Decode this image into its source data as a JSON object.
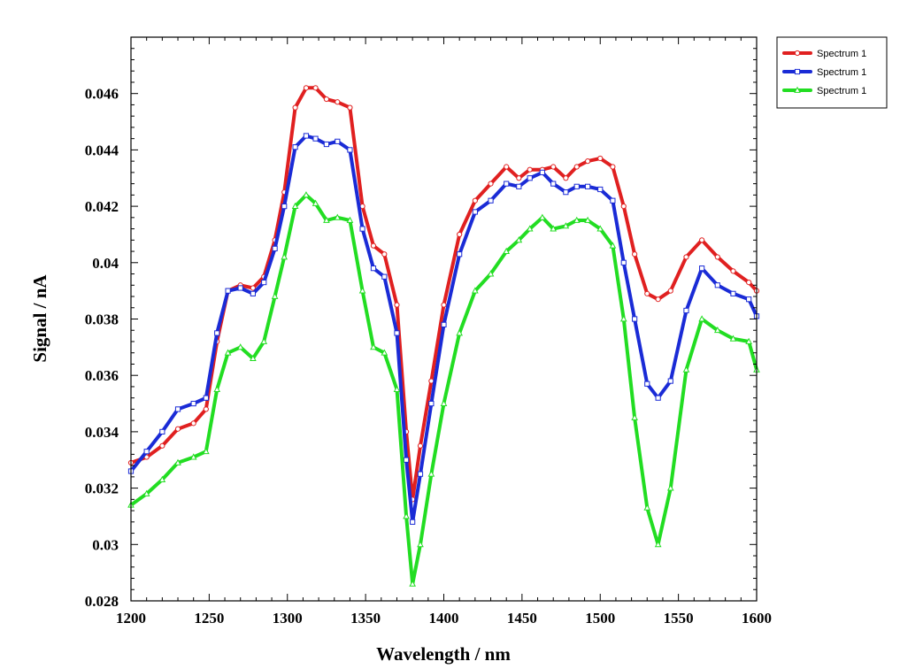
{
  "chart_data": {
    "type": "line",
    "title": "",
    "xlabel": "Wavelength / nm",
    "ylabel": "Signal / nA",
    "xlim": [
      1200,
      1600
    ],
    "ylim": [
      0.028,
      0.048
    ],
    "xticks": [
      "1200",
      "1250",
      "1300",
      "1350",
      "1400",
      "1450",
      "1500",
      "1550",
      "1600"
    ],
    "yticks": [
      "0.028",
      "0.03",
      "0.032",
      "0.034",
      "0.036",
      "0.038",
      "0.04",
      "0.042",
      "0.044",
      "0.046"
    ],
    "grid": false,
    "legend_position": "top-right outside",
    "series": [
      {
        "name": "Spectrum 1",
        "color": "#e02020",
        "marker": "circle",
        "points": [
          [
            1200,
            0.0329
          ],
          [
            1210,
            0.0331
          ],
          [
            1220,
            0.0335
          ],
          [
            1230,
            0.0341
          ],
          [
            1240,
            0.0343
          ],
          [
            1248,
            0.0348
          ],
          [
            1255,
            0.0372
          ],
          [
            1262,
            0.039
          ],
          [
            1270,
            0.0392
          ],
          [
            1278,
            0.0391
          ],
          [
            1285,
            0.0395
          ],
          [
            1292,
            0.0408
          ],
          [
            1298,
            0.0425
          ],
          [
            1305,
            0.0455
          ],
          [
            1312,
            0.0462
          ],
          [
            1318,
            0.0462
          ],
          [
            1325,
            0.0458
          ],
          [
            1332,
            0.0457
          ],
          [
            1340,
            0.0455
          ],
          [
            1348,
            0.042
          ],
          [
            1355,
            0.0406
          ],
          [
            1362,
            0.0403
          ],
          [
            1370,
            0.0385
          ],
          [
            1376,
            0.034
          ],
          [
            1380,
            0.0316
          ],
          [
            1385,
            0.0335
          ],
          [
            1392,
            0.0358
          ],
          [
            1400,
            0.0385
          ],
          [
            1410,
            0.041
          ],
          [
            1420,
            0.0422
          ],
          [
            1430,
            0.0428
          ],
          [
            1440,
            0.0434
          ],
          [
            1448,
            0.043
          ],
          [
            1455,
            0.0433
          ],
          [
            1463,
            0.0433
          ],
          [
            1470,
            0.0434
          ],
          [
            1478,
            0.043
          ],
          [
            1485,
            0.0434
          ],
          [
            1492,
            0.0436
          ],
          [
            1500,
            0.0437
          ],
          [
            1508,
            0.0434
          ],
          [
            1515,
            0.042
          ],
          [
            1522,
            0.0403
          ],
          [
            1530,
            0.0389
          ],
          [
            1537,
            0.0387
          ],
          [
            1545,
            0.039
          ],
          [
            1555,
            0.0402
          ],
          [
            1565,
            0.0408
          ],
          [
            1575,
            0.0402
          ],
          [
            1585,
            0.0397
          ],
          [
            1595,
            0.0393
          ],
          [
            1600,
            0.039
          ]
        ]
      },
      {
        "name": "Spectrum 1",
        "color": "#1a2bd6",
        "marker": "square",
        "points": [
          [
            1200,
            0.0326
          ],
          [
            1210,
            0.0333
          ],
          [
            1220,
            0.034
          ],
          [
            1230,
            0.0348
          ],
          [
            1240,
            0.035
          ],
          [
            1248,
            0.0352
          ],
          [
            1255,
            0.0375
          ],
          [
            1262,
            0.039
          ],
          [
            1270,
            0.0391
          ],
          [
            1278,
            0.0389
          ],
          [
            1285,
            0.0393
          ],
          [
            1292,
            0.0405
          ],
          [
            1298,
            0.042
          ],
          [
            1305,
            0.0441
          ],
          [
            1312,
            0.0445
          ],
          [
            1318,
            0.0444
          ],
          [
            1325,
            0.0442
          ],
          [
            1332,
            0.0443
          ],
          [
            1340,
            0.044
          ],
          [
            1348,
            0.0412
          ],
          [
            1355,
            0.0398
          ],
          [
            1362,
            0.0395
          ],
          [
            1370,
            0.0375
          ],
          [
            1376,
            0.033
          ],
          [
            1380,
            0.0308
          ],
          [
            1385,
            0.0325
          ],
          [
            1392,
            0.035
          ],
          [
            1400,
            0.0378
          ],
          [
            1410,
            0.0403
          ],
          [
            1420,
            0.0418
          ],
          [
            1430,
            0.0422
          ],
          [
            1440,
            0.0428
          ],
          [
            1448,
            0.0427
          ],
          [
            1455,
            0.043
          ],
          [
            1463,
            0.0432
          ],
          [
            1470,
            0.0428
          ],
          [
            1478,
            0.0425
          ],
          [
            1485,
            0.0427
          ],
          [
            1492,
            0.0427
          ],
          [
            1500,
            0.0426
          ],
          [
            1508,
            0.0422
          ],
          [
            1515,
            0.04
          ],
          [
            1522,
            0.038
          ],
          [
            1530,
            0.0357
          ],
          [
            1537,
            0.0352
          ],
          [
            1545,
            0.0358
          ],
          [
            1555,
            0.0383
          ],
          [
            1565,
            0.0398
          ],
          [
            1575,
            0.0392
          ],
          [
            1585,
            0.0389
          ],
          [
            1595,
            0.0387
          ],
          [
            1600,
            0.0381
          ]
        ]
      },
      {
        "name": "Spectrum 1",
        "color": "#22dd22",
        "marker": "triangle",
        "points": [
          [
            1200,
            0.0314
          ],
          [
            1210,
            0.0318
          ],
          [
            1220,
            0.0323
          ],
          [
            1230,
            0.0329
          ],
          [
            1240,
            0.0331
          ],
          [
            1248,
            0.0333
          ],
          [
            1255,
            0.0355
          ],
          [
            1262,
            0.0368
          ],
          [
            1270,
            0.037
          ],
          [
            1278,
            0.0366
          ],
          [
            1285,
            0.0372
          ],
          [
            1292,
            0.0388
          ],
          [
            1298,
            0.0402
          ],
          [
            1305,
            0.042
          ],
          [
            1312,
            0.0424
          ],
          [
            1318,
            0.0421
          ],
          [
            1325,
            0.0415
          ],
          [
            1332,
            0.0416
          ],
          [
            1340,
            0.0415
          ],
          [
            1348,
            0.039
          ],
          [
            1355,
            0.037
          ],
          [
            1362,
            0.0368
          ],
          [
            1370,
            0.0355
          ],
          [
            1376,
            0.031
          ],
          [
            1380,
            0.0286
          ],
          [
            1385,
            0.03
          ],
          [
            1392,
            0.0325
          ],
          [
            1400,
            0.035
          ],
          [
            1410,
            0.0375
          ],
          [
            1420,
            0.039
          ],
          [
            1430,
            0.0396
          ],
          [
            1440,
            0.0404
          ],
          [
            1448,
            0.0408
          ],
          [
            1455,
            0.0412
          ],
          [
            1463,
            0.0416
          ],
          [
            1470,
            0.0412
          ],
          [
            1478,
            0.0413
          ],
          [
            1485,
            0.0415
          ],
          [
            1492,
            0.0415
          ],
          [
            1500,
            0.0412
          ],
          [
            1508,
            0.0406
          ],
          [
            1515,
            0.038
          ],
          [
            1522,
            0.0345
          ],
          [
            1530,
            0.0313
          ],
          [
            1537,
            0.03
          ],
          [
            1545,
            0.032
          ],
          [
            1555,
            0.0362
          ],
          [
            1565,
            0.038
          ],
          [
            1575,
            0.0376
          ],
          [
            1585,
            0.0373
          ],
          [
            1595,
            0.0372
          ],
          [
            1600,
            0.0362
          ]
        ]
      }
    ]
  }
}
